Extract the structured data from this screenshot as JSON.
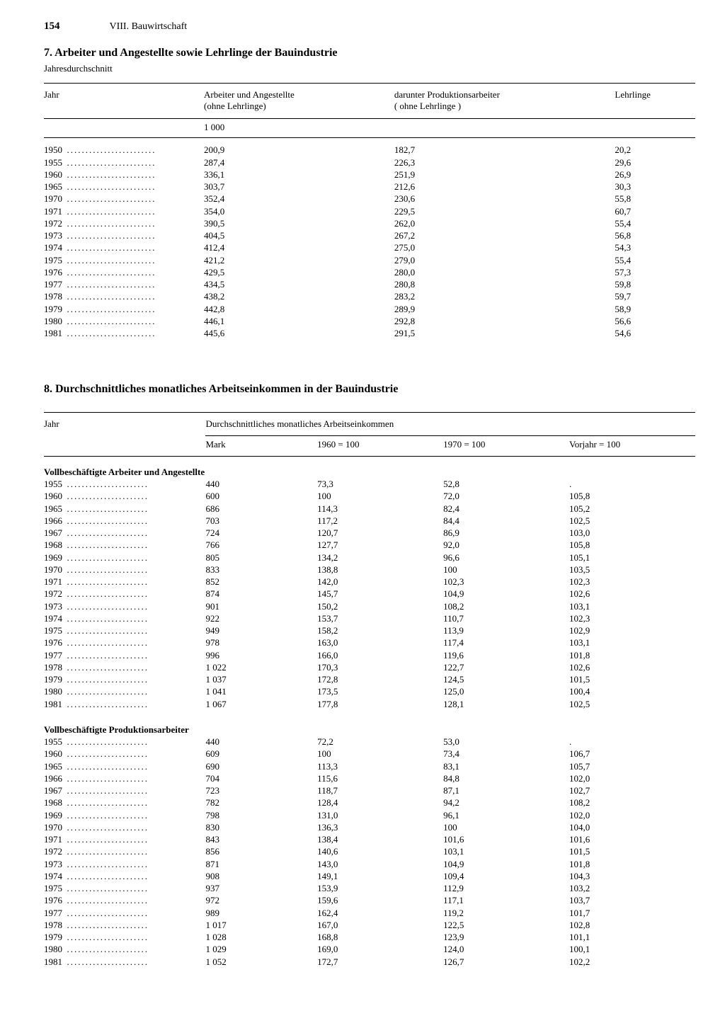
{
  "page": {
    "number": "154",
    "chapter": "VIII. Bauwirtschaft"
  },
  "section7": {
    "title": "7. Arbeiter und Angestellte sowie Lehrlinge der Bauindustrie",
    "subtitle": "Jahresdurchschnitt",
    "columns": {
      "year": "Jahr",
      "workers": "Arbeiter und Angestellte\n(ohne Lehrlinge)",
      "prod": "darunter Produktionsarbeiter\n( ohne Lehrlinge )",
      "appr": "Lehrlinge"
    },
    "unit": "1 000",
    "rows": [
      {
        "y": "1950",
        "a": "200,9",
        "b": "182,7",
        "c": "20,2"
      },
      {
        "y": "1955",
        "a": "287,4",
        "b": "226,3",
        "c": "29,6"
      },
      {
        "y": "1960",
        "a": "336,1",
        "b": "251,9",
        "c": "26,9"
      },
      {
        "y": "1965",
        "a": "303,7",
        "b": "212,6",
        "c": "30,3"
      },
      {
        "y": "1970",
        "a": "352,4",
        "b": "230,6",
        "c": "55,8"
      },
      {
        "y": "1971",
        "a": "354,0",
        "b": "229,5",
        "c": "60,7"
      },
      {
        "y": "1972",
        "a": "390,5",
        "b": "262,0",
        "c": "55,4"
      },
      {
        "y": "1973",
        "a": "404,5",
        "b": "267,2",
        "c": "56,8"
      },
      {
        "y": "1974",
        "a": "412,4",
        "b": "275,0",
        "c": "54,3"
      },
      {
        "y": "1975",
        "a": "421,2",
        "b": "279,0",
        "c": "55,4"
      },
      {
        "y": "1976",
        "a": "429,5",
        "b": "280,0",
        "c": "57,3"
      },
      {
        "y": "1977",
        "a": "434,5",
        "b": "280,8",
        "c": "59,8"
      },
      {
        "y": "1978",
        "a": "438,2",
        "b": "283,2",
        "c": "59,7"
      },
      {
        "y": "1979",
        "a": "442,8",
        "b": "289,9",
        "c": "58,9"
      },
      {
        "y": "1980",
        "a": "446,1",
        "b": "292,8",
        "c": "56,6"
      },
      {
        "y": "1981",
        "a": "445,6",
        "b": "291,5",
        "c": "54,6"
      }
    ]
  },
  "section8": {
    "title": "8. Durchschnittliches monatliches Arbeitseinkommen in der Bauindustrie",
    "columns": {
      "year": "Jahr",
      "group": "Durchschnittliches monatliches Arbeitseinkommen",
      "mark": "Mark",
      "i60": "1960 = 100",
      "i70": "1970 = 100",
      "prev": "Vorjahr = 100"
    },
    "groupA": {
      "label": "Vollbeschäftigte Arbeiter und Angestellte",
      "rows": [
        {
          "y": "1955",
          "m": "440",
          "a": "73,3",
          "b": "52,8",
          "c": "."
        },
        {
          "y": "1960",
          "m": "600",
          "a": "100",
          "b": "72,0",
          "c": "105,8"
        },
        {
          "y": "1965",
          "m": "686",
          "a": "114,3",
          "b": "82,4",
          "c": "105,2"
        },
        {
          "y": "1966",
          "m": "703",
          "a": "117,2",
          "b": "84,4",
          "c": "102,5"
        },
        {
          "y": "1967",
          "m": "724",
          "a": "120,7",
          "b": "86,9",
          "c": "103,0"
        },
        {
          "y": "1968",
          "m": "766",
          "a": "127,7",
          "b": "92,0",
          "c": "105,8"
        },
        {
          "y": "1969",
          "m": "805",
          "a": "134,2",
          "b": "96,6",
          "c": "105,1"
        },
        {
          "y": "1970",
          "m": "833",
          "a": "138,8",
          "b": "100",
          "c": "103,5"
        },
        {
          "y": "1971",
          "m": "852",
          "a": "142,0",
          "b": "102,3",
          "c": "102,3"
        },
        {
          "y": "1972",
          "m": "874",
          "a": "145,7",
          "b": "104,9",
          "c": "102,6"
        },
        {
          "y": "1973",
          "m": "901",
          "a": "150,2",
          "b": "108,2",
          "c": "103,1"
        },
        {
          "y": "1974",
          "m": "922",
          "a": "153,7",
          "b": "110,7",
          "c": "102,3"
        },
        {
          "y": "1975",
          "m": "949",
          "a": "158,2",
          "b": "113,9",
          "c": "102,9"
        },
        {
          "y": "1976",
          "m": "978",
          "a": "163,0",
          "b": "117,4",
          "c": "103,1"
        },
        {
          "y": "1977",
          "m": "996",
          "a": "166,0",
          "b": "119,6",
          "c": "101,8"
        },
        {
          "y": "1978",
          "m": "1 022",
          "a": "170,3",
          "b": "122,7",
          "c": "102,6"
        },
        {
          "y": "1979",
          "m": "1 037",
          "a": "172,8",
          "b": "124,5",
          "c": "101,5"
        },
        {
          "y": "1980",
          "m": "1 041",
          "a": "173,5",
          "b": "125,0",
          "c": "100,4"
        },
        {
          "y": "1981",
          "m": "1 067",
          "a": "177,8",
          "b": "128,1",
          "c": "102,5"
        }
      ]
    },
    "groupB": {
      "label": "Vollbeschäftigte Produktionsarbeiter",
      "rows": [
        {
          "y": "1955",
          "m": "440",
          "a": "72,2",
          "b": "53,0",
          "c": "."
        },
        {
          "y": "1960",
          "m": "609",
          "a": "100",
          "b": "73,4",
          "c": "106,7"
        },
        {
          "y": "1965",
          "m": "690",
          "a": "113,3",
          "b": "83,1",
          "c": "105,7"
        },
        {
          "y": "1966",
          "m": "704",
          "a": "115,6",
          "b": "84,8",
          "c": "102,0"
        },
        {
          "y": "1967",
          "m": "723",
          "a": "118,7",
          "b": "87,1",
          "c": "102,7"
        },
        {
          "y": "1968",
          "m": "782",
          "a": "128,4",
          "b": "94,2",
          "c": "108,2"
        },
        {
          "y": "1969",
          "m": "798",
          "a": "131,0",
          "b": "96,1",
          "c": "102,0"
        },
        {
          "y": "1970",
          "m": "830",
          "a": "136,3",
          "b": "100",
          "c": "104,0"
        },
        {
          "y": "1971",
          "m": "843",
          "a": "138,4",
          "b": "101,6",
          "c": "101,6"
        },
        {
          "y": "1972",
          "m": "856",
          "a": "140,6",
          "b": "103,1",
          "c": "101,5"
        },
        {
          "y": "1973",
          "m": "871",
          "a": "143,0",
          "b": "104,9",
          "c": "101,8"
        },
        {
          "y": "1974",
          "m": "908",
          "a": "149,1",
          "b": "109,4",
          "c": "104,3"
        },
        {
          "y": "1975",
          "m": "937",
          "a": "153,9",
          "b": "112,9",
          "c": "103,2"
        },
        {
          "y": "1976",
          "m": "972",
          "a": "159,6",
          "b": "117,1",
          "c": "103,7"
        },
        {
          "y": "1977",
          "m": "989",
          "a": "162,4",
          "b": "119,2",
          "c": "101,7"
        },
        {
          "y": "1978",
          "m": "1 017",
          "a": "167,0",
          "b": "122,5",
          "c": "102,8"
        },
        {
          "y": "1979",
          "m": "1 028",
          "a": "168,8",
          "b": "123,9",
          "c": "101,1"
        },
        {
          "y": "1980",
          "m": "1 029",
          "a": "169,0",
          "b": "124,0",
          "c": "100,1"
        },
        {
          "y": "1981",
          "m": "1 052",
          "a": "172,7",
          "b": "126,7",
          "c": "102,2"
        }
      ]
    }
  }
}
